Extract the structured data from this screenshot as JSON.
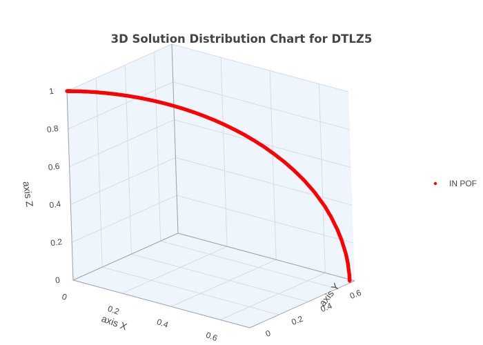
{
  "chart_data": {
    "type": "scatter",
    "title": "3D Solution Distribution Chart for DTLZ5",
    "axes": {
      "x": {
        "label": "axis X",
        "range": [
          0,
          0.72
        ],
        "ticks": [
          "0",
          "0.2",
          "0.4",
          "0.6"
        ]
      },
      "y": {
        "label": "axis Y",
        "range": [
          0,
          0.72
        ],
        "ticks": [
          "0",
          "0.2",
          "0.4",
          "0.6"
        ]
      },
      "z": {
        "label": "axis Z",
        "range": [
          0,
          1
        ],
        "ticks": [
          "0",
          "0.2",
          "0.4",
          "0.6",
          "0.8",
          "1"
        ]
      }
    },
    "grid": true,
    "background_color": "#eef5fd",
    "legend": {
      "placement": "right",
      "entries": [
        "IN POF"
      ]
    },
    "series": [
      {
        "name": "IN POF",
        "color": "#ff0000",
        "marker": "circle",
        "points": [
          [
            0.0,
            0.0,
            1.0
          ],
          [
            0.005,
            0.005,
            0.99998
          ],
          [
            0.01,
            0.01,
            0.9999
          ],
          [
            0.02,
            0.02,
            0.9996
          ],
          [
            0.035,
            0.035,
            0.9988
          ],
          [
            0.05,
            0.05,
            0.9975
          ],
          [
            0.075,
            0.075,
            0.9944
          ],
          [
            0.1,
            0.1,
            0.9899
          ],
          [
            0.125,
            0.125,
            0.9843
          ],
          [
            0.15,
            0.15,
            0.9772
          ],
          [
            0.175,
            0.175,
            0.9689
          ],
          [
            0.2,
            0.2,
            0.9592
          ],
          [
            0.225,
            0.225,
            0.9481
          ],
          [
            0.25,
            0.25,
            0.9354
          ],
          [
            0.275,
            0.275,
            0.9212
          ],
          [
            0.3,
            0.3,
            0.9055
          ],
          [
            0.325,
            0.325,
            0.8882
          ],
          [
            0.35,
            0.35,
            0.8689
          ],
          [
            0.375,
            0.375,
            0.8478
          ],
          [
            0.4,
            0.4,
            0.8246
          ],
          [
            0.425,
            0.425,
            0.7991
          ],
          [
            0.45,
            0.45,
            0.7714
          ],
          [
            0.475,
            0.475,
            0.7406
          ],
          [
            0.5,
            0.5,
            0.7071
          ],
          [
            0.525,
            0.525,
            0.6693
          ],
          [
            0.55,
            0.55,
            0.6285
          ],
          [
            0.575,
            0.575,
            0.5818
          ],
          [
            0.6,
            0.6,
            0.5292
          ],
          [
            0.625,
            0.625,
            0.4677
          ],
          [
            0.65,
            0.65,
            0.3937
          ],
          [
            0.665,
            0.665,
            0.3381
          ],
          [
            0.68,
            0.68,
            0.2709
          ],
          [
            0.69,
            0.69,
            0.2154
          ],
          [
            0.7,
            0.7,
            0.1414
          ],
          [
            0.704,
            0.704,
            0.0943
          ],
          [
            0.707,
            0.707,
            0.03
          ],
          [
            0.7071,
            0.7071,
            0.0
          ]
        ]
      }
    ]
  }
}
